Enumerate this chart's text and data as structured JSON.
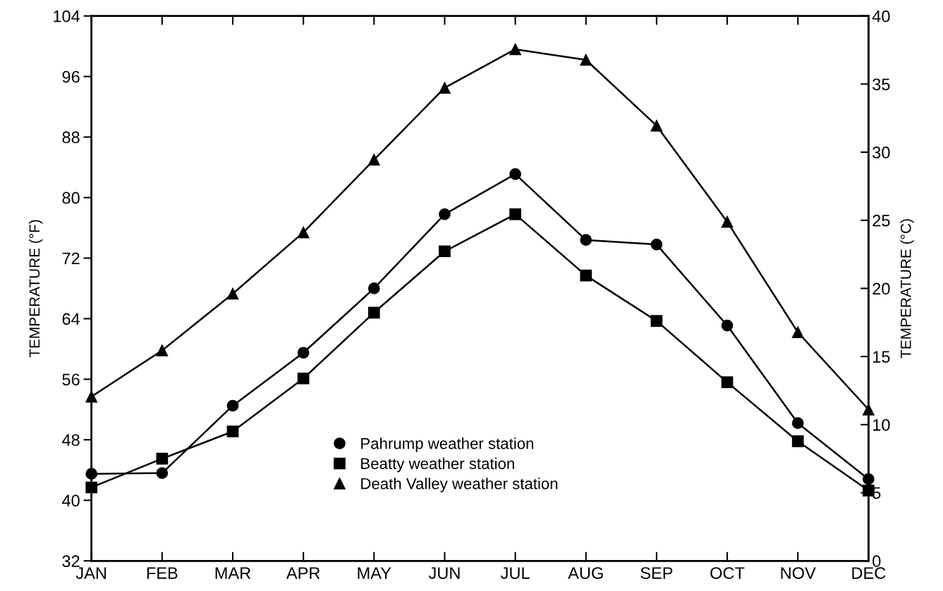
{
  "chart_data": {
    "type": "line",
    "categories": [
      "JAN",
      "FEB",
      "MAR",
      "APR",
      "MAY",
      "JUN",
      "JUL",
      "AUG",
      "SEP",
      "OCT",
      "NOV",
      "DEC"
    ],
    "series": [
      {
        "name": "Pahrump weather station",
        "color": "#000000",
        "marker": "circle",
        "values": [
          43.5,
          43.6,
          52.5,
          59.5,
          68.0,
          77.8,
          83.1,
          74.4,
          73.8,
          63.1,
          50.2,
          42.8
        ]
      },
      {
        "name": "Beatty weather station",
        "color": "#000000",
        "marker": "square",
        "values": [
          41.7,
          45.5,
          49.1,
          56.1,
          64.8,
          72.9,
          77.8,
          69.7,
          63.7,
          55.6,
          47.8,
          41.3
        ]
      },
      {
        "name": "Death Valley weather station",
        "color": "#000000",
        "marker": "triangle",
        "values": [
          53.7,
          59.8,
          67.3,
          75.4,
          85.0,
          94.5,
          99.6,
          98.2,
          89.5,
          76.8,
          62.2,
          52.0
        ]
      }
    ],
    "ylabel": "TEMPERATURE (°F)",
    "y2label": "TEMPERATURE (°C)",
    "ylim": [
      32,
      104
    ],
    "yticks": [
      32,
      40,
      48,
      56,
      64,
      72,
      80,
      88,
      96,
      104
    ],
    "y2lim": [
      0,
      40
    ],
    "y2ticks": [
      0,
      5,
      10,
      15,
      20,
      25,
      30,
      35,
      40
    ],
    "line_style": "solid",
    "grid": false,
    "legend": "bottom"
  }
}
